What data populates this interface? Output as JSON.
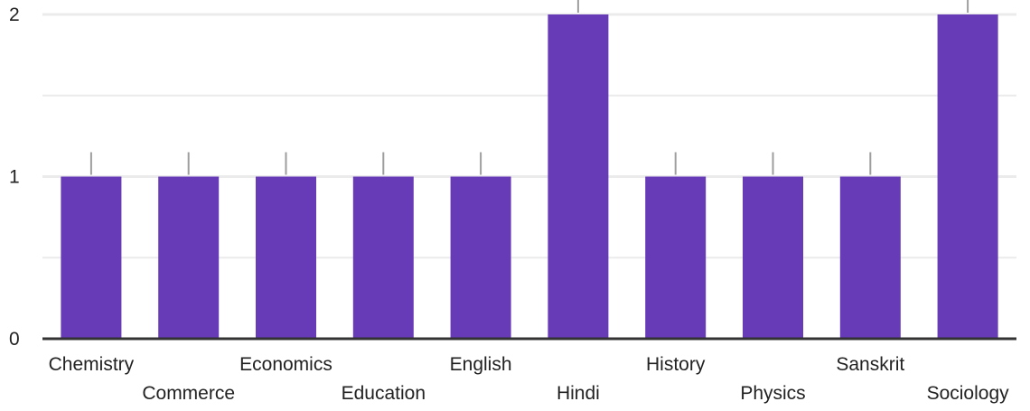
{
  "chart_data": {
    "type": "bar",
    "categories": [
      "Chemistry",
      "Commerce",
      "Economics",
      "Education",
      "English",
      "Hindi",
      "History",
      "Physics",
      "Sanskrit",
      "Sociology"
    ],
    "values": [
      1,
      1,
      1,
      1,
      1,
      2,
      1,
      1,
      1,
      2
    ],
    "ylim": [
      0,
      2
    ],
    "yticks": [
      "0",
      "1",
      "2"
    ],
    "grid": true,
    "legend": "none",
    "colors": {
      "bar": "#673AB7",
      "grid": "#EBEBEB",
      "axis": "#333333",
      "whisker": "#9E9E9E"
    }
  }
}
